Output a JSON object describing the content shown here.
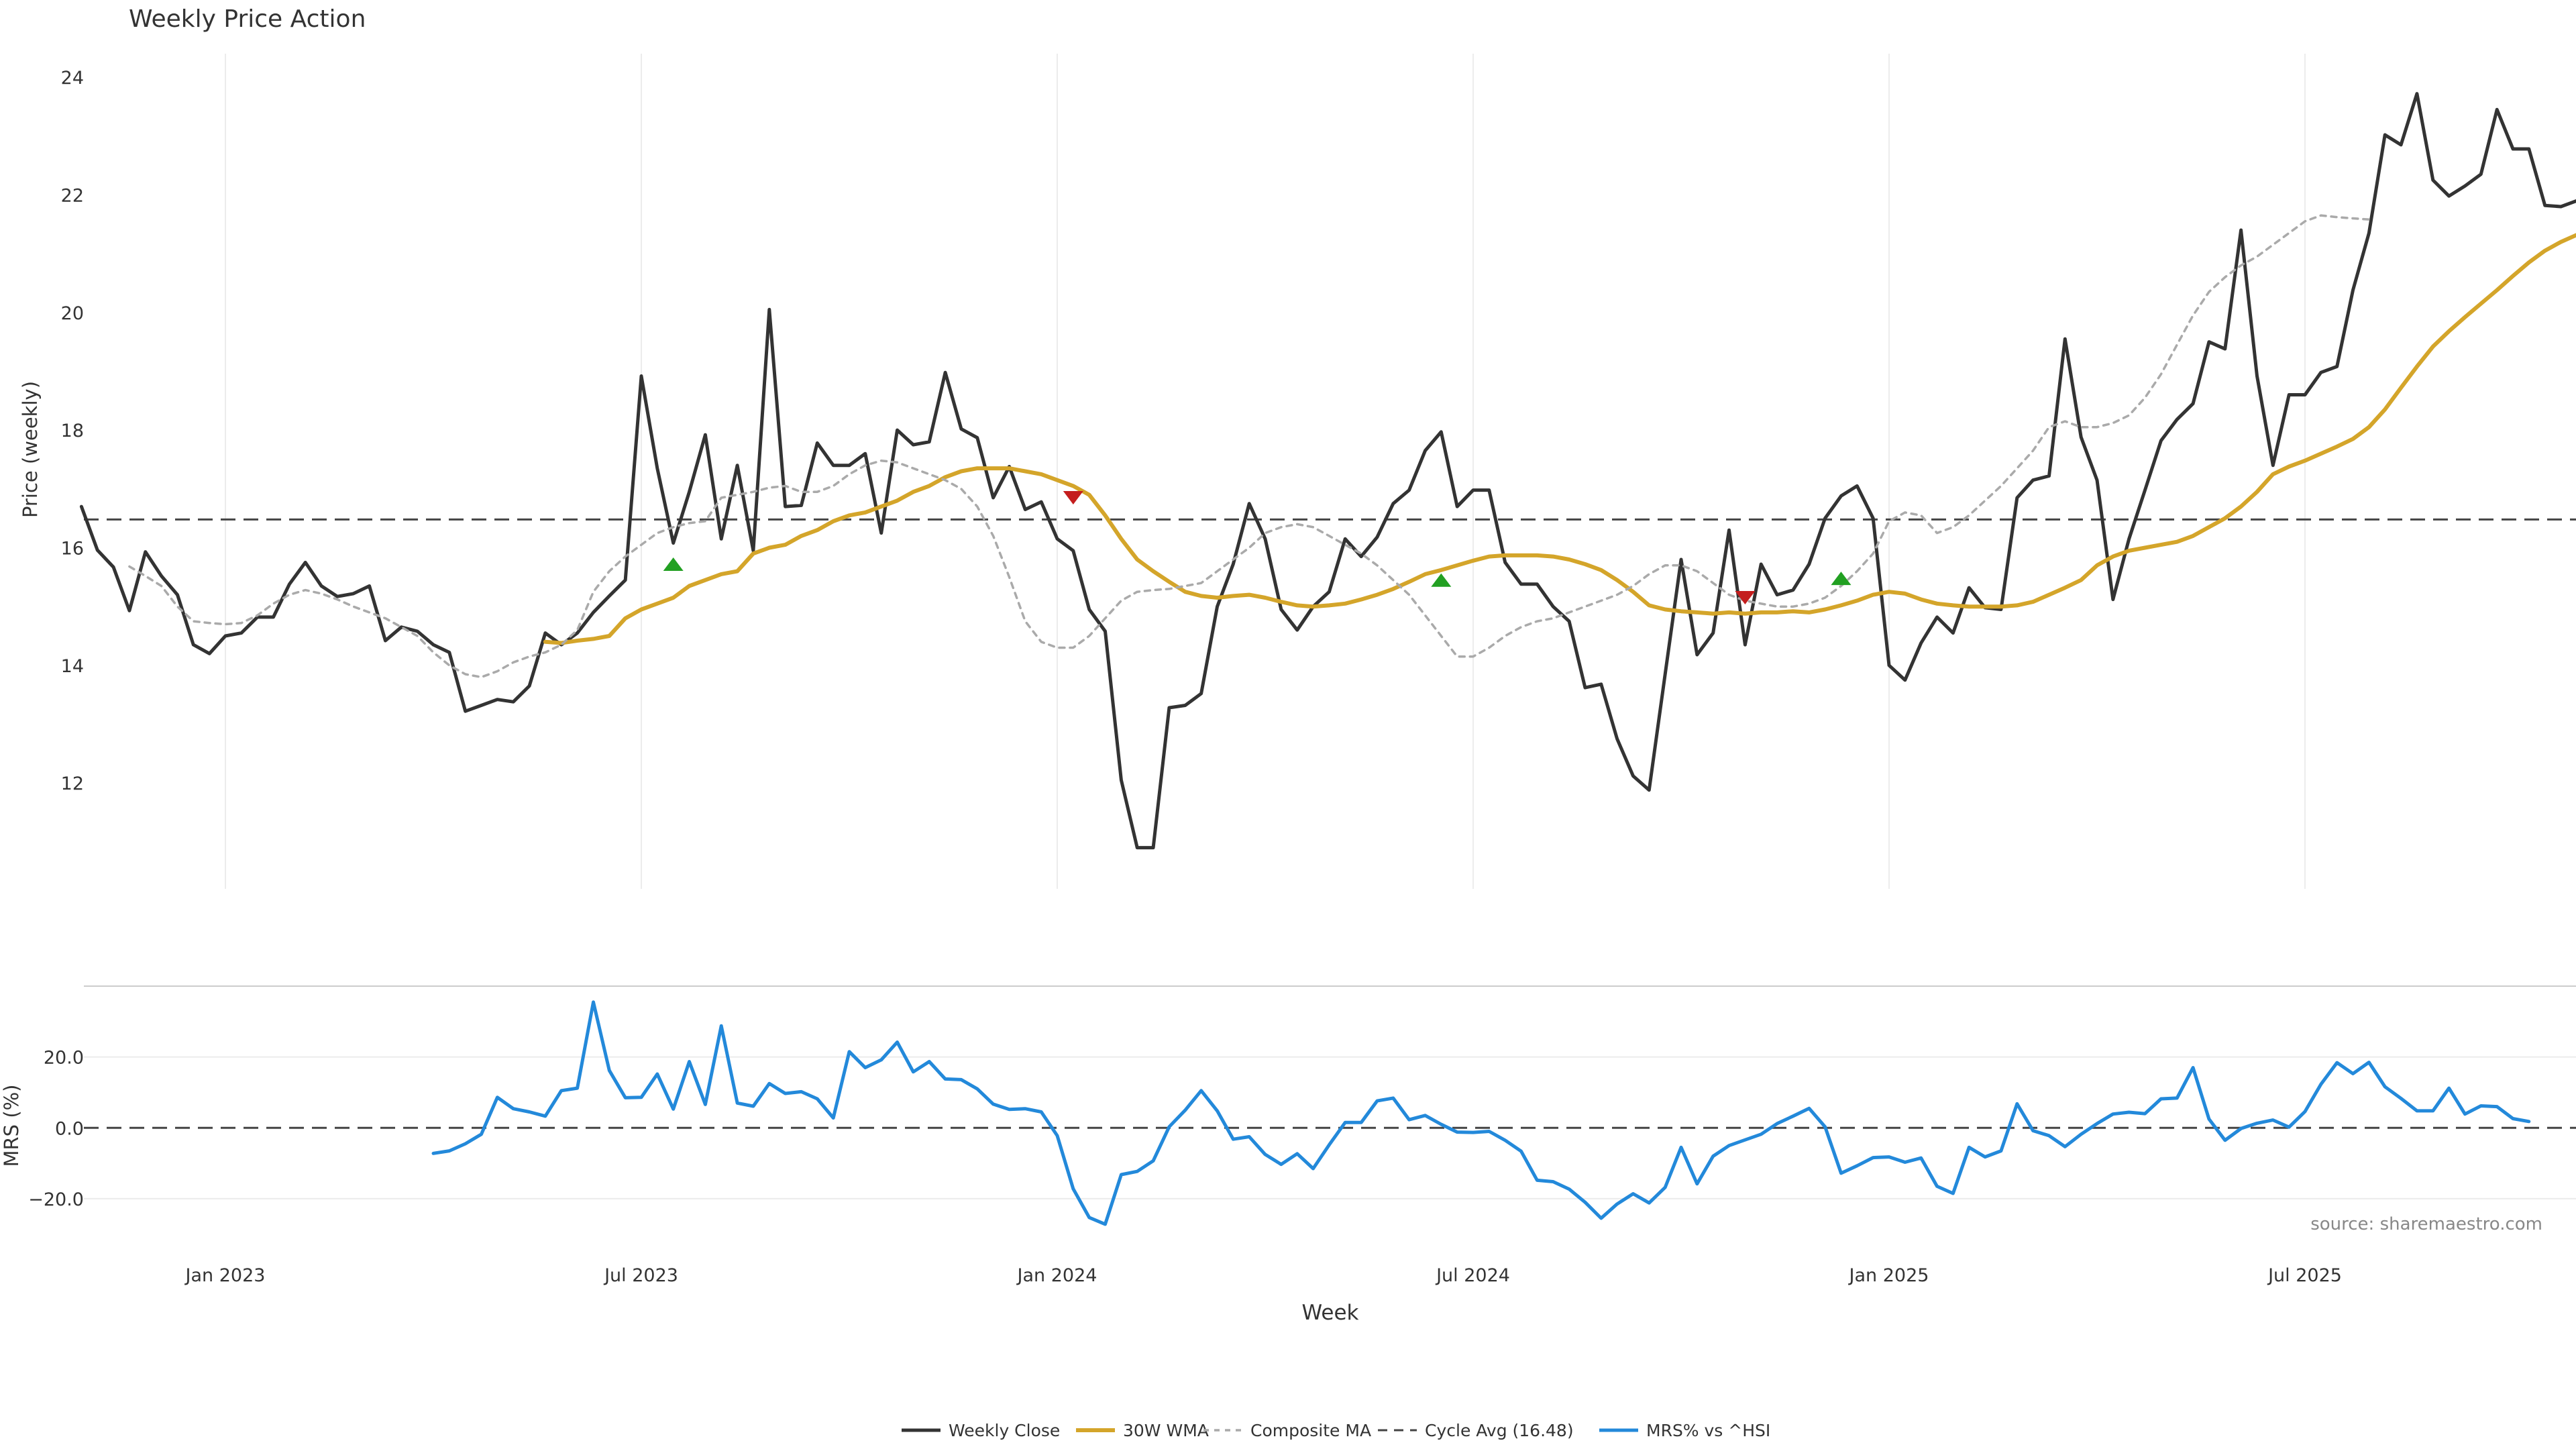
{
  "chart_data": [
    {
      "type": "line",
      "title": "Weekly Price Action",
      "ylabel": "Price (weekly)",
      "ylim": [
        10.2,
        24.4
      ],
      "yticks": [
        "12",
        "14",
        "16",
        "18",
        "20",
        "22",
        "24"
      ],
      "grid": "x",
      "series": [
        {
          "name": "Weekly Close",
          "color": "#333333",
          "start": "2022-10-31",
          "values": [
            16.7,
            15.96,
            15.67,
            14.93,
            15.93,
            15.52,
            15.2,
            14.35,
            14.2,
            14.5,
            14.55,
            14.82,
            14.82,
            15.38,
            15.75,
            15.35,
            15.17,
            15.22,
            15.35,
            14.42,
            14.65,
            14.58,
            14.35,
            14.22,
            13.22,
            13.32,
            13.42,
            13.38,
            13.65,
            14.55,
            14.35,
            14.55,
            14.9,
            15.18,
            15.45,
            18.92,
            17.35,
            16.08,
            16.95,
            17.92,
            16.15,
            17.4,
            15.95,
            20.05,
            16.7,
            16.72,
            17.78,
            17.4,
            17.4,
            17.6,
            16.25,
            18.0,
            17.75,
            17.8,
            18.98,
            18.02,
            17.87,
            16.85,
            17.38,
            16.65,
            16.78,
            16.15,
            15.95,
            14.95,
            14.58,
            12.05,
            10.9,
            10.9,
            13.28,
            13.32,
            13.52,
            15.0,
            15.72,
            16.75,
            16.15,
            14.95,
            14.6,
            15.0,
            15.25,
            16.15,
            15.85,
            16.18,
            16.75,
            16.98,
            17.65,
            17.97,
            16.7,
            16.98,
            16.98,
            15.75,
            15.38,
            15.38,
            15.0,
            14.75,
            13.62,
            13.68,
            12.75,
            12.12,
            11.88,
            13.85,
            15.8,
            14.18,
            14.55,
            16.3,
            14.35,
            15.72,
            15.2,
            15.28,
            15.72,
            16.5,
            16.88,
            17.05,
            16.5,
            14.0,
            13.75,
            14.38,
            14.82,
            14.55,
            15.32,
            14.98,
            14.95,
            16.85,
            17.15,
            17.22,
            19.55,
            17.88,
            17.15,
            15.12,
            16.15,
            16.98,
            17.82,
            18.18,
            18.45,
            19.5,
            19.38,
            21.4,
            18.92,
            17.4,
            18.6,
            18.6,
            18.98,
            19.08,
            20.38,
            21.35,
            23.02,
            22.85,
            23.72,
            22.25,
            21.98,
            22.15,
            22.35,
            23.45,
            22.78,
            22.78,
            21.82,
            21.8,
            21.9
          ]
        },
        {
          "name": "30W WMA",
          "color": "#D4A52A",
          "start": "2023-05-22",
          "values": [
            14.4,
            14.38,
            14.42,
            14.45,
            14.5,
            14.8,
            14.95,
            15.05,
            15.15,
            15.35,
            15.45,
            15.55,
            15.6,
            15.9,
            16.0,
            16.05,
            16.2,
            16.3,
            16.45,
            16.55,
            16.6,
            16.7,
            16.8,
            16.95,
            17.05,
            17.2,
            17.3,
            17.35,
            17.35,
            17.35,
            17.3,
            17.25,
            17.15,
            17.05,
            16.9,
            16.55,
            16.15,
            15.8,
            15.6,
            15.42,
            15.25,
            15.18,
            15.15,
            15.18,
            15.2,
            15.15,
            15.08,
            15.02,
            15.0,
            15.02,
            15.05,
            15.12,
            15.2,
            15.3,
            15.42,
            15.55,
            15.62,
            15.7,
            15.78,
            15.85,
            15.87,
            15.87,
            15.87,
            15.85,
            15.8,
            15.72,
            15.62,
            15.45,
            15.25,
            15.02,
            14.95,
            14.92,
            14.9,
            14.88,
            14.9,
            14.88,
            14.9,
            14.9,
            14.92,
            14.9,
            14.95,
            15.02,
            15.1,
            15.2,
            15.25,
            15.22,
            15.12,
            15.05,
            15.02,
            15.0,
            15.0,
            15.0,
            15.02,
            15.08,
            15.2,
            15.32,
            15.45,
            15.7,
            15.85,
            15.95,
            16.0,
            16.05,
            16.1,
            16.2,
            16.35,
            16.5,
            16.7,
            16.95,
            17.25,
            17.38,
            17.48,
            17.6,
            17.72,
            17.85,
            18.05,
            18.35,
            18.72,
            19.08,
            19.42,
            19.68,
            19.92,
            20.15,
            20.38,
            20.62,
            20.85,
            21.05,
            21.2,
            21.32,
            21.42
          ]
        },
        {
          "name": "Composite MA",
          "color": "#AAAAAA",
          "start": "2022-11-21",
          "values": [
            15.68,
            15.52,
            15.35,
            15.0,
            14.75,
            14.72,
            14.7,
            14.72,
            14.85,
            15.05,
            15.2,
            15.28,
            15.22,
            15.12,
            15.0,
            14.9,
            14.8,
            14.65,
            14.5,
            14.22,
            14.0,
            13.85,
            13.8,
            13.9,
            14.05,
            14.15,
            14.22,
            14.35,
            14.6,
            15.25,
            15.6,
            15.85,
            16.05,
            16.25,
            16.35,
            16.42,
            16.45,
            16.85,
            16.9,
            16.95,
            17.02,
            17.05,
            16.95,
            16.95,
            17.05,
            17.25,
            17.4,
            17.48,
            17.45,
            17.35,
            17.25,
            17.15,
            17.0,
            16.7,
            16.2,
            15.5,
            14.75,
            14.4,
            14.3,
            14.3,
            14.5,
            14.8,
            15.1,
            15.25,
            15.28,
            15.3,
            15.35,
            15.4,
            15.6,
            15.8,
            16.0,
            16.25,
            16.35,
            16.4,
            16.35,
            16.2,
            16.05,
            15.9,
            15.7,
            15.45,
            15.2,
            14.85,
            14.5,
            14.15,
            14.15,
            14.3,
            14.5,
            14.65,
            14.75,
            14.8,
            14.9,
            15.0,
            15.1,
            15.2,
            15.35,
            15.55,
            15.7,
            15.7,
            15.6,
            15.4,
            15.2,
            15.1,
            15.05,
            15.0,
            15.0,
            15.05,
            15.15,
            15.35,
            15.6,
            15.9,
            16.45,
            16.6,
            16.55,
            16.25,
            16.35,
            16.55,
            16.8,
            17.05,
            17.35,
            17.65,
            18.05,
            18.15,
            18.05,
            18.05,
            18.12,
            18.25,
            18.55,
            18.95,
            19.45,
            19.95,
            20.35,
            20.6,
            20.8,
            20.95,
            21.15,
            21.35,
            21.55,
            21.65,
            21.62,
            21.6,
            21.58
          ]
        },
        {
          "name": "Cycle Avg (16.48)",
          "color": "#444444",
          "value": 16.48
        }
      ],
      "markers": [
        {
          "kind": "buy",
          "x": "2023-07-17",
          "y": 15.72,
          "color": "#22A022"
        },
        {
          "kind": "sell",
          "x": "2024-01-08",
          "y": 16.85,
          "color": "#C41E1E"
        },
        {
          "kind": "buy",
          "x": "2024-06-17",
          "y": 15.45,
          "color": "#22A022"
        },
        {
          "kind": "sell",
          "x": "2024-10-28",
          "y": 15.15,
          "color": "#C41E1E"
        },
        {
          "kind": "buy",
          "x": "2024-12-09",
          "y": 15.48,
          "color": "#22A022"
        }
      ]
    },
    {
      "type": "line",
      "ylabel": "MRS (%)",
      "xlabel": "Week",
      "ylim": [
        -31,
        40
      ],
      "yticks": [
        "−20.0",
        "0.0",
        "20.0"
      ],
      "xticks": [
        {
          "label": "Jan 2023",
          "date": "2023-01-02"
        },
        {
          "label": "Jul 2023",
          "date": "2023-07-03"
        },
        {
          "label": "Jan 2024",
          "date": "2024-01-01"
        },
        {
          "label": "Jul 2024",
          "date": "2024-07-01"
        },
        {
          "label": "Jan 2025",
          "date": "2024-12-30"
        },
        {
          "label": "Jul 2025",
          "date": "2025-06-30"
        }
      ],
      "series": [
        {
          "name": "MRS% vs ^HSI",
          "color": "#2389DA",
          "start": "2023-04-03",
          "values": [
            -7.2,
            -6.5,
            -4.5,
            -1.8,
            8.6,
            5.4,
            4.5,
            3.3,
            10.5,
            11.2,
            35.5,
            16.2,
            8.5,
            8.6,
            15.2,
            5.3,
            18.7,
            6.6,
            28.8,
            7.0,
            6.1,
            12.5,
            9.7,
            10.2,
            8.2,
            2.8,
            21.5,
            17.0,
            19.2,
            24.2,
            15.8,
            18.7,
            13.8,
            13.6,
            11.0,
            6.7,
            5.2,
            5.4,
            4.5,
            -2.2,
            -17.2,
            -25.3,
            -27.2,
            -13.2,
            -12.3,
            -9.3,
            0.3,
            5.0,
            10.5,
            4.8,
            -3.2,
            -2.5,
            -7.5,
            -10.3,
            -7.3,
            -11.5,
            -4.8,
            1.5,
            1.5,
            7.6,
            8.4,
            2.3,
            3.5,
            1.0,
            -1.2,
            -1.3,
            -1.0,
            -3.5,
            -6.6,
            -14.8,
            -15.2,
            -17.3,
            -21.0,
            -25.5,
            -21.5,
            -18.6,
            -21.2,
            -16.8,
            -5.5,
            -15.8,
            -8.0,
            -5.0,
            -3.4,
            -1.8,
            1.2,
            3.3,
            5.5,
            0.3,
            -12.8,
            -10.7,
            -8.4,
            -8.2,
            -9.7,
            -8.5,
            -16.5,
            -18.5,
            -5.5,
            -8.2,
            -6.5,
            6.8,
            -0.8,
            -2.2,
            -5.3,
            -1.8,
            1.2,
            3.9,
            4.4,
            4.0,
            8.2,
            8.4,
            17.0,
            2.5,
            -3.5,
            -0.2,
            1.3,
            2.2,
            0.2,
            4.6,
            12.3,
            18.4,
            15.3,
            18.5,
            11.6,
            8.3,
            4.8,
            4.8,
            11.2,
            3.9,
            6.2,
            6.0,
            2.6,
            1.8
          ]
        },
        {
          "name": "MRS zero",
          "color": "#444444",
          "value": 0
        }
      ],
      "legend": {
        "position": "bottom",
        "entries": [
          "Weekly Close",
          "30W WMA",
          "Composite MA",
          "Cycle Avg (16.48)",
          "MRS% vs ^HSI"
        ]
      },
      "annotation": "source: sharemaestro.com"
    }
  ]
}
